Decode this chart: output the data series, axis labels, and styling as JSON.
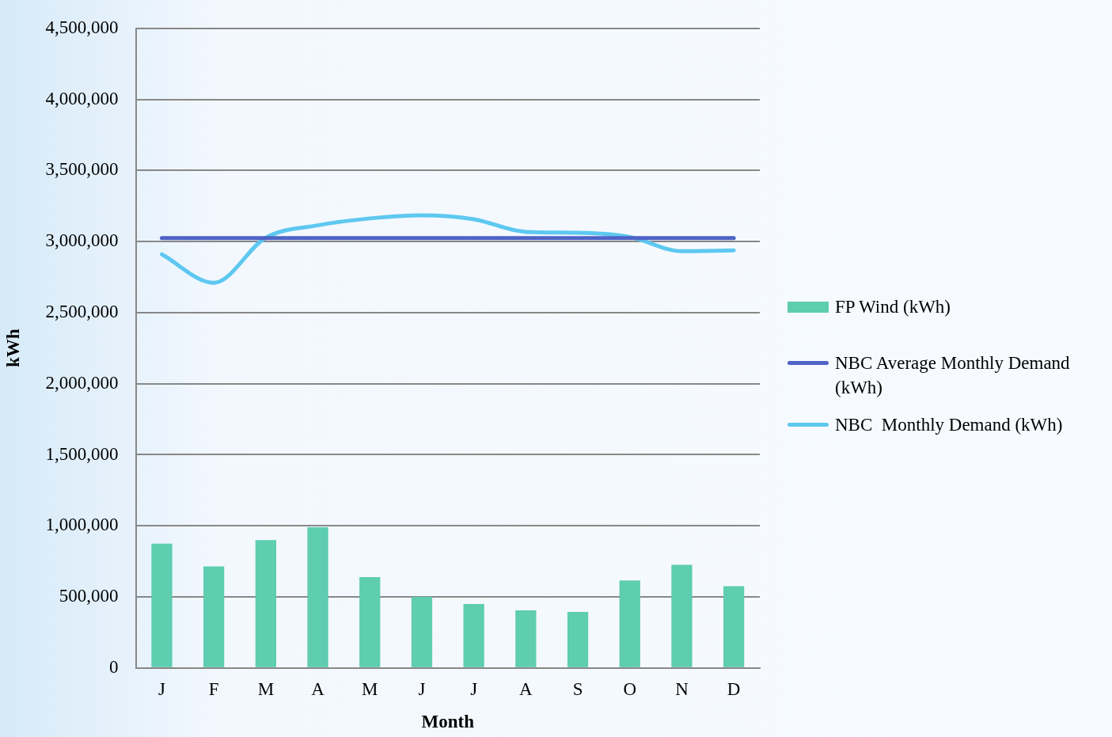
{
  "chart_data": {
    "type": "bar",
    "xlabel": "Month",
    "ylabel": "kWh",
    "categories": [
      "J",
      "F",
      "M",
      "A",
      "M",
      "J",
      "J",
      "A",
      "S",
      "O",
      "N",
      "D"
    ],
    "series": [
      {
        "name": "FP Wind (kWh)",
        "color": "#5ecdb0",
        "values": [
          875000,
          715000,
          900000,
          990000,
          640000,
          500000,
          450000,
          405000,
          395000,
          615000,
          725000,
          575000
        ]
      },
      {
        "name": "NBC Average Monthly Demand (kWh)",
        "type": "line",
        "color": "#4f63c6",
        "values": [
          3025000,
          3025000,
          3025000,
          3025000,
          3025000,
          3025000,
          3025000,
          3025000,
          3025000,
          3025000,
          3025000,
          3025000
        ]
      },
      {
        "name": "NBC  Monthly Demand (kWh)",
        "type": "line",
        "color": "#5ec8f0",
        "values": [
          2910000,
          2710000,
          3027000,
          3114000,
          3163000,
          3184000,
          3157000,
          3068000,
          3062000,
          3032000,
          2932000,
          2938000
        ]
      }
    ],
    "ylim": [
      0,
      4500000
    ],
    "yticks": [
      0,
      {
        "value": 500000,
        "label": "500,000"
      },
      {
        "value": 1000000,
        "label": "1,000,000"
      },
      {
        "value": 1500000,
        "label": "1,500,000"
      },
      {
        "value": 2000000,
        "label": "2,000,000"
      },
      {
        "value": 2500000,
        "label": "2,500,000"
      },
      {
        "value": 3000000,
        "label": "3,000,000"
      },
      {
        "value": 3500000,
        "label": "3,500,000"
      },
      {
        "value": 4000000,
        "label": "4,000,000"
      },
      {
        "value": 4500000,
        "label": "4,500,000"
      }
    ],
    "grid": "y",
    "legend": "right",
    "marker": "none"
  }
}
